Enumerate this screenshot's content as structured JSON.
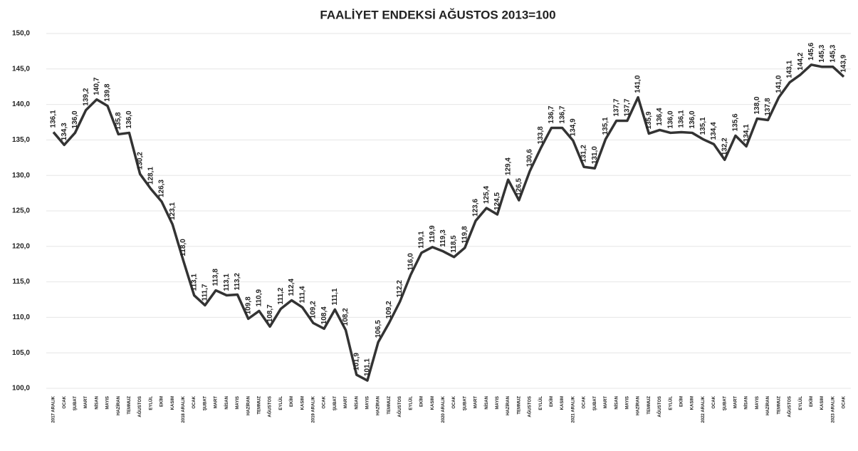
{
  "chart_data": {
    "type": "line",
    "title": "FAALİYET ENDEKSİ AĞUSTOS 2013=100",
    "categories": [
      "2017 ARALIK",
      "OCAK",
      "ŞUBAT",
      "MART",
      "NİSAN",
      "MAYIS",
      "HAZİRAN",
      "TEMMUZ",
      "AĞUSTOS",
      "EYLÜL",
      "EKİM",
      "KASIM",
      "2018 ARALIK",
      "OCAK",
      "ŞUBAT",
      "MART",
      "NİSAN",
      "MAYIS",
      "HAZİRAN",
      "TEMMUZ",
      "AĞUSTOS",
      "EYLÜL",
      "EKİM",
      "KASIM",
      "2019 ARALIK",
      "OCAK",
      "ŞUBAT",
      "MART",
      "NİSAN",
      "MAYIS",
      "HAZİRAN",
      "TEMMUZ",
      "AĞUSTOS",
      "EYLÜL",
      "EKİM",
      "KASIM",
      "2020 ARALIK",
      "OCAK",
      "ŞUBAT",
      "MART",
      "NİSAN",
      "MAYIS",
      "HAZİRAN",
      "TEMMUZ",
      "AĞUSTOS",
      "EYLÜL",
      "EKİM",
      "KASIM",
      "2021 ARALIK",
      "OCAK",
      "ŞUBAT",
      "MART",
      "NİSAN",
      "MAYIS",
      "HAZİRAN",
      "TEMMUZ",
      "AĞUSTOS",
      "EYLÜL",
      "EKİM",
      "KASIM",
      "2022 ARALIK",
      "OCAK",
      "ŞUBAT",
      "MART",
      "NİSAN",
      "MAYIS",
      "HAZİRAN",
      "TEMMUZ",
      "AĞUSTOS",
      "EYLÜL",
      "EKİM",
      "KASIM",
      "2023 ARALIK",
      "OCAK"
    ],
    "values": [
      136.1,
      134.3,
      136.0,
      139.2,
      140.7,
      139.8,
      135.8,
      136.0,
      130.2,
      128.1,
      126.3,
      123.1,
      118.0,
      113.1,
      111.7,
      113.8,
      113.1,
      113.2,
      109.8,
      110.9,
      108.7,
      111.2,
      112.4,
      111.4,
      109.2,
      108.4,
      111.1,
      108.2,
      101.9,
      101.1,
      106.5,
      109.2,
      112.2,
      116.0,
      119.1,
      119.9,
      119.3,
      118.5,
      119.8,
      123.6,
      125.4,
      124.5,
      129.4,
      126.5,
      130.6,
      133.8,
      136.7,
      136.7,
      134.9,
      131.2,
      131.0,
      135.1,
      137.7,
      137.7,
      141.0,
      135.9,
      136.4,
      136.0,
      136.1,
      136.0,
      135.1,
      134.4,
      132.2,
      135.6,
      134.1,
      138.0,
      137.8,
      141.0,
      143.1,
      144.2,
      145.6,
      145.3,
      145.3,
      143.9
    ],
    "value_labels": [
      "136,1",
      "134,3",
      "136,0",
      "139,2",
      "140,7",
      "139,8",
      "135,8",
      "136,0",
      "130,2",
      "128,1",
      "126,3",
      "123,1",
      "118,0",
      "113,1",
      "111,7",
      "113,8",
      "113,1",
      "113,2",
      "109,8",
      "110,9",
      "108,7",
      "111,2",
      "112,4",
      "111,4",
      "109,2",
      "108,4",
      "111,1",
      "108,2",
      "101,9",
      "101,1",
      "106,5",
      "109,2",
      "112,2",
      "116,0",
      "119,1",
      "119,9",
      "119,3",
      "118,5",
      "119,8",
      "123,6",
      "125,4",
      "124,5",
      "129,4",
      "126,5",
      "130,6",
      "133,8",
      "136,7",
      "136,7",
      "134,9",
      "131,2",
      "131,0",
      "135,1",
      "137,7",
      "137,7",
      "141,0",
      "135,9",
      "136,4",
      "136,0",
      "136,1",
      "136,0",
      "135,1",
      "134,4",
      "132,2",
      "135,6",
      "134,1",
      "138,0",
      "137,8",
      "141,0",
      "143,1",
      "144,2",
      "145,6",
      "145,3",
      "145,3",
      "143,9"
    ],
    "color": "#333333",
    "ylim": [
      100,
      150
    ],
    "yticks": [
      {
        "value": 100,
        "label": "100,0"
      },
      {
        "value": 105,
        "label": "105,0"
      },
      {
        "value": 110,
        "label": "110,0"
      },
      {
        "value": 115,
        "label": "115,0"
      },
      {
        "value": 120,
        "label": "120,0"
      },
      {
        "value": 125,
        "label": "125,0"
      },
      {
        "value": 130,
        "label": "130,0"
      },
      {
        "value": 135,
        "label": "135,0"
      },
      {
        "value": 140,
        "label": "140,0"
      },
      {
        "value": 145,
        "label": "145,0"
      },
      {
        "value": 150,
        "label": "150,0"
      }
    ],
    "grid": true
  }
}
